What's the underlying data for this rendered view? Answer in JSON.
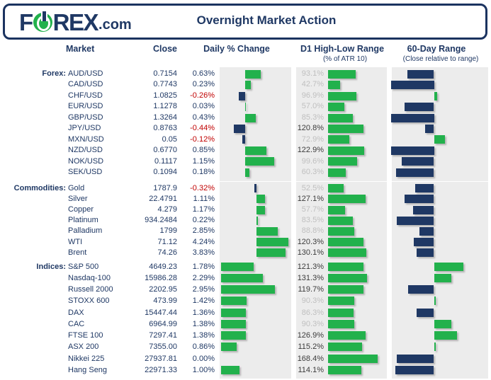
{
  "header": {
    "logo_f": "F",
    "logo_rex": "REX",
    "logo_suffix": ".com",
    "title": "Overnight Market Action"
  },
  "columns": {
    "market": "Market",
    "close": "Close",
    "daily": "Daily % Change",
    "d1": "D1 High-Low Range",
    "d1_sub": "(% of ATR 10)",
    "range60": "60-Day Range",
    "range60_sub": "(Close relative to range)"
  },
  "colors": {
    "navy": "#1F3864",
    "green": "#22B14C",
    "red": "#C00000",
    "dim_label": "#BFBFBF",
    "strong_label": "#3B3B3B",
    "panel_bg": "#ECECEC"
  },
  "chart_data": {
    "type": "table",
    "title": "Overnight Market Action",
    "legend": "bars: green = positive / above mid-range, navy = negative / below mid-range",
    "columns": [
      "Market",
      "Close",
      "Daily % Change",
      "D1 High-Low Range (% of ATR 10)",
      "60-Day Range (Close relative to range)"
    ],
    "sections": [
      {
        "label": "Forex:",
        "rows": [
          {
            "market": "AUD/USD",
            "close": "0.7154",
            "daily_pct": 0.63,
            "daily": "0.63%",
            "d1_pct": 93.1,
            "d1": "93.1%",
            "pos60_est": -31
          },
          {
            "market": "CAD/USD",
            "close": "0.7743",
            "daily_pct": 0.23,
            "daily": "0.23%",
            "d1_pct": 42.7,
            "d1": "42.7%",
            "pos60_est": -50
          },
          {
            "market": "CHF/USD",
            "close": "1.0825",
            "daily_pct": -0.26,
            "daily": "-0.26%",
            "d1_pct": 96.9,
            "d1": "96.9%",
            "pos60_est": 4
          },
          {
            "market": "EUR/USD",
            "close": "1.1278",
            "daily_pct": 0.03,
            "daily": "0.03%",
            "d1_pct": 57.0,
            "d1": "57.0%",
            "pos60_est": -34
          },
          {
            "market": "GBP/USD",
            "close": "1.3264",
            "daily_pct": 0.43,
            "daily": "0.43%",
            "d1_pct": 85.3,
            "d1": "85.3%",
            "pos60_est": -50
          },
          {
            "market": "JPY/USD",
            "close": "0.8763",
            "daily_pct": -0.44,
            "daily": "-0.44%",
            "d1_pct": 120.8,
            "d1": "120.8%",
            "pos60_est": -10
          },
          {
            "market": "MXN/USD",
            "close": "0.05",
            "daily_pct": -0.12,
            "daily": "-0.12%",
            "d1_pct": 72.9,
            "d1": "72.9%",
            "pos60_est": 13
          },
          {
            "market": "NZD/USD",
            "close": "0.6770",
            "daily_pct": 0.85,
            "daily": "0.85%",
            "d1_pct": 122.9,
            "d1": "122.9%",
            "pos60_est": -50
          },
          {
            "market": "NOK/USD",
            "close": "0.1117",
            "daily_pct": 1.15,
            "daily": "1.15%",
            "d1_pct": 99.6,
            "d1": "99.6%",
            "pos60_est": -37
          },
          {
            "market": "SEK/USD",
            "close": "0.1094",
            "daily_pct": 0.18,
            "daily": "0.18%",
            "d1_pct": 60.3,
            "d1": "60.3%",
            "pos60_est": -44
          }
        ]
      },
      {
        "label": "Commodities:",
        "rows": [
          {
            "market": "Gold",
            "close": "1787.9",
            "daily_pct": -0.32,
            "daily": "-0.32%",
            "d1_pct": 52.5,
            "d1": "52.5%",
            "pos60_est": -22
          },
          {
            "market": "Silver",
            "close": "22.4791",
            "daily_pct": 1.11,
            "daily": "1.11%",
            "d1_pct": 127.1,
            "d1": "127.1%",
            "pos60_est": -34
          },
          {
            "market": "Copper",
            "close": "4.279",
            "daily_pct": 1.17,
            "daily": "1.17%",
            "d1_pct": 57.7,
            "d1": "57.7%",
            "pos60_est": -24
          },
          {
            "market": "Platinum",
            "close": "934.2484",
            "daily_pct": 0.22,
            "daily": "0.22%",
            "d1_pct": 83.5,
            "d1": "83.5%",
            "pos60_est": -43
          },
          {
            "market": "Palladium",
            "close": "1799",
            "daily_pct": 2.85,
            "daily": "2.85%",
            "d1_pct": 88.8,
            "d1": "88.8%",
            "pos60_est": -17
          },
          {
            "market": "WTI",
            "close": "71.12",
            "daily_pct": 4.24,
            "daily": "4.24%",
            "d1_pct": 120.3,
            "d1": "120.3%",
            "pos60_est": -23
          },
          {
            "market": "Brent",
            "close": "74.26",
            "daily_pct": 3.83,
            "daily": "3.83%",
            "d1_pct": 130.1,
            "d1": "130.1%",
            "pos60_est": -20
          }
        ]
      },
      {
        "label": "Indices:",
        "rows": [
          {
            "market": "S&P 500",
            "close": "4649.23",
            "daily_pct": 1.78,
            "daily": "1.78%",
            "d1_pct": 121.3,
            "d1": "121.3%",
            "pos60_est": 34
          },
          {
            "market": "Nasdaq-100",
            "close": "15986.28",
            "daily_pct": 2.29,
            "daily": "2.29%",
            "d1_pct": 131.3,
            "d1": "131.3%",
            "pos60_est": 20
          },
          {
            "market": "Russell 2000",
            "close": "2202.95",
            "daily_pct": 2.95,
            "daily": "2.95%",
            "d1_pct": 119.7,
            "d1": "119.7%",
            "pos60_est": -30
          },
          {
            "market": "STOXX 600",
            "close": "473.99",
            "daily_pct": 1.42,
            "daily": "1.42%",
            "d1_pct": 90.3,
            "d1": "90.3%",
            "pos60_est": 2
          },
          {
            "market": "DAX",
            "close": "15447.44",
            "daily_pct": 1.36,
            "daily": "1.36%",
            "d1_pct": 86.3,
            "d1": "86.3%",
            "pos60_est": -20
          },
          {
            "market": "CAC",
            "close": "6964.99",
            "daily_pct": 1.38,
            "daily": "1.38%",
            "d1_pct": 90.3,
            "d1": "90.3%",
            "pos60_est": 20
          },
          {
            "market": "FTSE 100",
            "close": "7297.41",
            "daily_pct": 1.38,
            "daily": "1.38%",
            "d1_pct": 126.9,
            "d1": "126.9%",
            "pos60_est": 27
          },
          {
            "market": "ASX 200",
            "close": "7355.00",
            "daily_pct": 0.86,
            "daily": "0.86%",
            "d1_pct": 115.2,
            "d1": "115.2%",
            "pos60_est": 2
          },
          {
            "market": "Nikkei 225",
            "close": "27937.81",
            "daily_pct": 0.0,
            "daily": "0.00%",
            "d1_pct": 168.4,
            "d1": "168.4%",
            "pos60_est": -43
          },
          {
            "market": "Hang Seng",
            "close": "22971.33",
            "daily_pct": 1.0,
            "daily": "1.00%",
            "d1_pct": 114.1,
            "d1": "114.1%",
            "pos60_est": -45
          }
        ]
      }
    ]
  }
}
